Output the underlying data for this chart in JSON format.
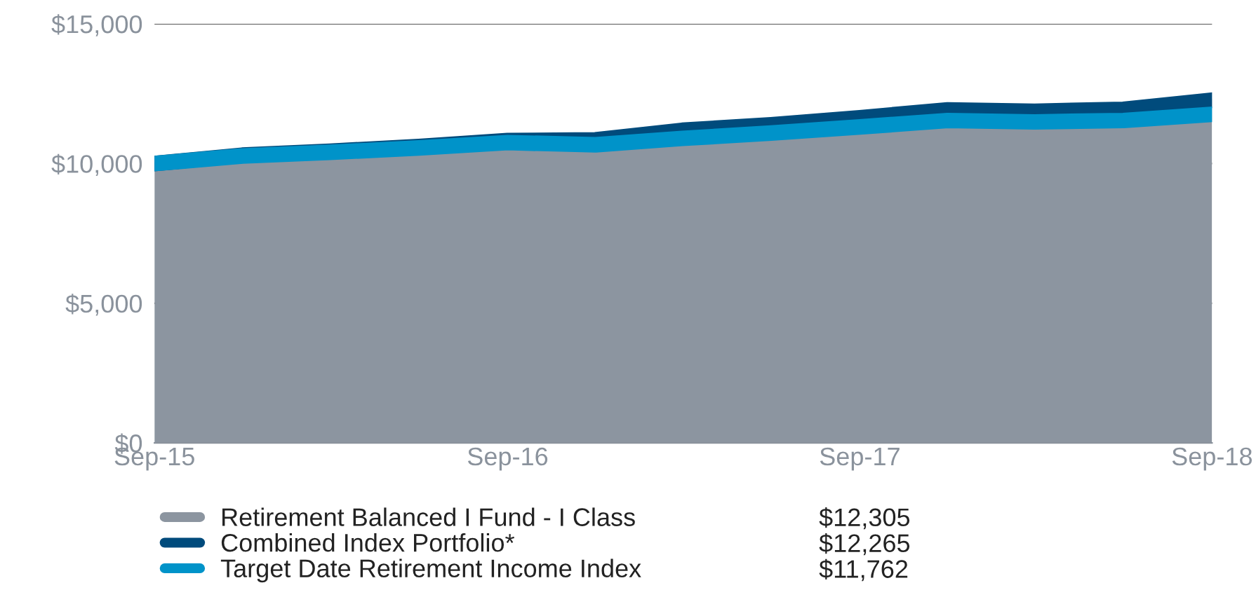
{
  "chart_data": {
    "type": "area",
    "x": [
      "2015-09",
      "2015-12",
      "2016-03",
      "2016-06",
      "2016-09",
      "2016-12",
      "2017-03",
      "2017-06",
      "2017-09",
      "2017-12",
      "2018-03",
      "2018-06",
      "2018-09"
    ],
    "series": [
      {
        "name": "Retirement Balanced I Fund - I Class",
        "color": "#8c95a0",
        "values": [
          10000,
          10290,
          10430,
          10590,
          10780,
          10700,
          10980,
          11180,
          11420,
          11680,
          11620,
          11720,
          12305
        ]
      },
      {
        "name": "Combined Index Portfolio*",
        "type": "line",
        "color": "#004b7c",
        "values": [
          10000,
          10300,
          10440,
          10610,
          10820,
          10850,
          11190,
          11390,
          11640,
          11920,
          11870,
          11940,
          12265
        ]
      },
      {
        "name": "Target Date Retirement Income Index",
        "type": "line",
        "color": "#0093c9",
        "values": [
          10000,
          10270,
          10400,
          10560,
          10750,
          10670,
          10900,
          11090,
          11310,
          11540,
          11490,
          11540,
          11762
        ]
      }
    ],
    "ylim": [
      0,
      15000
    ],
    "yticks": [
      {
        "value": 0,
        "label": "$0"
      },
      {
        "value": 5000,
        "label": "$5,000"
      },
      {
        "value": 10000,
        "label": "$10,000"
      },
      {
        "value": 15000,
        "label": "$15,000"
      }
    ],
    "xlim": [
      "2015-09",
      "2018-09"
    ],
    "xticks": [
      {
        "value": "2015-09",
        "label": "Sep-15"
      },
      {
        "value": "2016-09",
        "label": "Sep-16"
      },
      {
        "value": "2017-09",
        "label": "Sep-17"
      },
      {
        "value": "2018-09",
        "label": "Sep-18"
      }
    ],
    "grid": "y",
    "legend": "bottom",
    "annotations": [
      "$12,305",
      "$12,265",
      "$11,762"
    ]
  }
}
